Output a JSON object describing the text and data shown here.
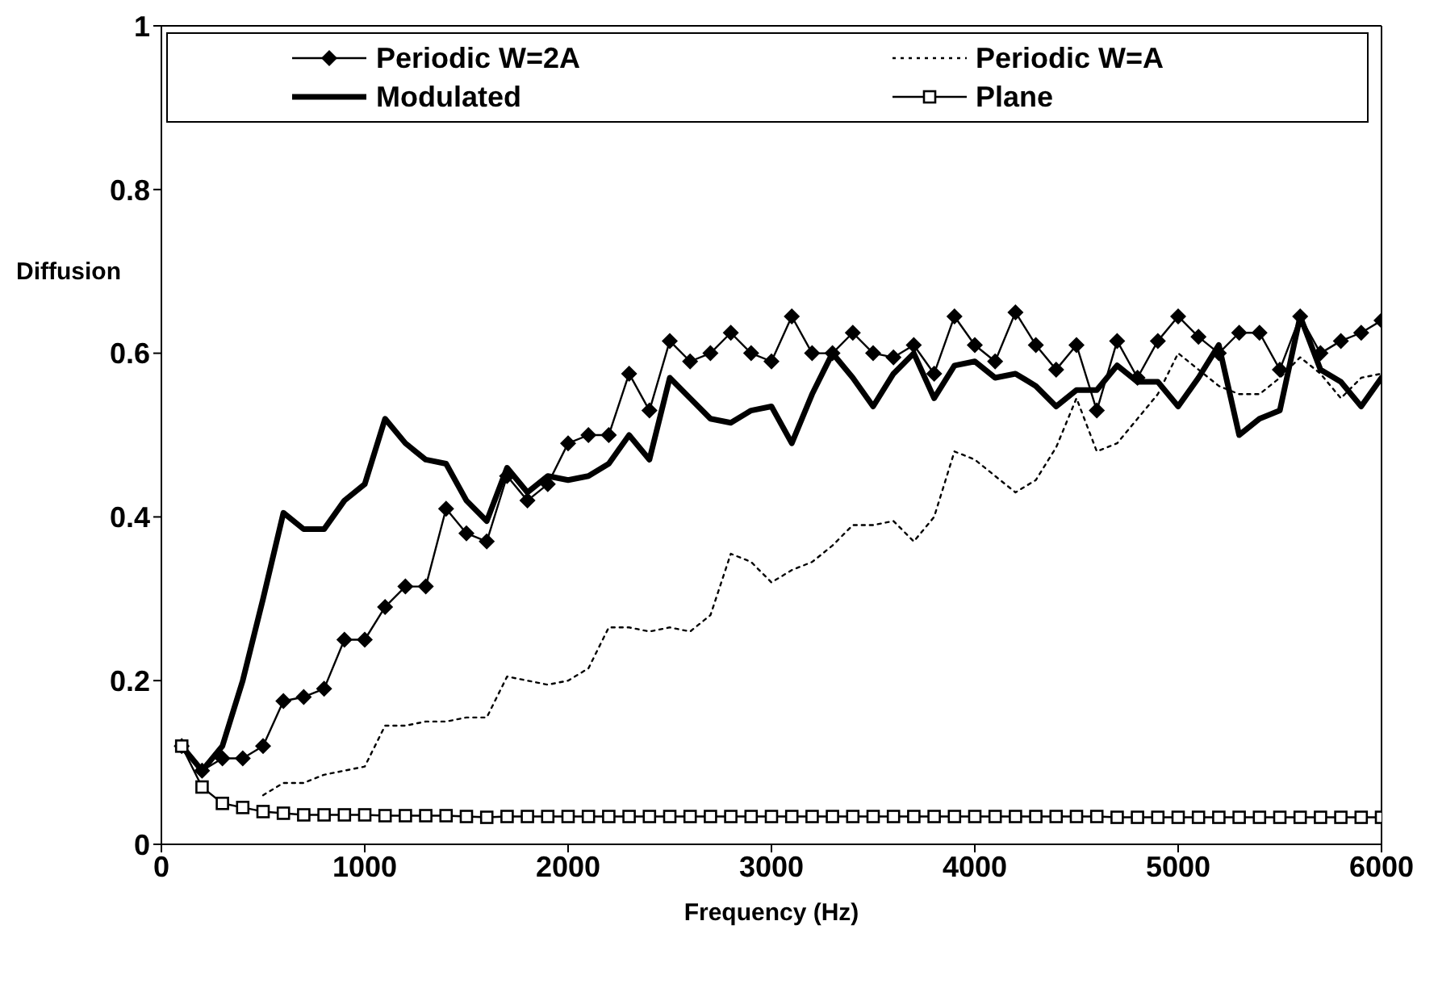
{
  "chart_data": {
    "type": "line",
    "xlabel": "Frequency (Hz)",
    "ylabel": "Diffusion",
    "x": [
      100,
      200,
      300,
      400,
      500,
      600,
      700,
      800,
      900,
      1000,
      1100,
      1200,
      1300,
      1400,
      1500,
      1600,
      1700,
      1800,
      1900,
      2000,
      2100,
      2200,
      2300,
      2400,
      2500,
      2600,
      2700,
      2800,
      2900,
      3000,
      3100,
      3200,
      3300,
      3400,
      3500,
      3600,
      3700,
      3800,
      3900,
      4000,
      4100,
      4200,
      4300,
      4400,
      4500,
      4600,
      4700,
      4800,
      4900,
      5000,
      5100,
      5200,
      5300,
      5400,
      5500,
      5600,
      5700,
      5800,
      5900,
      6000
    ],
    "series": [
      {
        "name": "Periodic W=2A",
        "color": "#000000",
        "marker": "diamond",
        "line_style": "solid",
        "values": [
          0.12,
          0.09,
          0.105,
          0.105,
          0.12,
          0.175,
          0.18,
          0.19,
          0.25,
          0.25,
          0.29,
          0.315,
          0.315,
          0.41,
          0.38,
          0.37,
          0.45,
          0.42,
          0.44,
          0.49,
          0.5,
          0.5,
          0.575,
          0.53,
          0.615,
          0.59,
          0.6,
          0.625,
          0.6,
          0.59,
          0.645,
          0.6,
          0.6,
          0.625,
          0.6,
          0.595,
          0.61,
          0.575,
          0.645,
          0.61,
          0.59,
          0.65,
          0.61,
          0.58,
          0.61,
          0.53,
          0.615,
          0.57,
          0.615,
          0.645,
          0.62,
          0.6,
          0.625,
          0.625,
          0.58,
          0.645,
          0.6,
          0.615,
          0.625,
          0.64
        ]
      },
      {
        "name": "Periodic W=A",
        "color": "#000000",
        "marker": "none",
        "line_style": "dotted",
        "values": [
          null,
          null,
          null,
          null,
          0.06,
          0.075,
          0.075,
          0.085,
          0.09,
          0.095,
          0.145,
          0.145,
          0.15,
          0.15,
          0.155,
          0.155,
          0.205,
          0.2,
          0.195,
          0.2,
          0.215,
          0.265,
          0.265,
          0.26,
          0.265,
          0.26,
          0.28,
          0.355,
          0.345,
          0.32,
          0.335,
          0.345,
          0.365,
          0.39,
          0.39,
          0.395,
          0.37,
          0.4,
          0.48,
          0.47,
          0.45,
          0.43,
          0.445,
          0.485,
          0.545,
          0.48,
          0.49,
          0.52,
          0.55,
          0.6,
          0.58,
          0.56,
          0.55,
          0.55,
          0.57,
          0.595,
          0.575,
          0.545,
          0.57,
          0.575
        ]
      },
      {
        "name": "Modulated",
        "color": "#000000",
        "marker": "none",
        "line_style": "solid",
        "values": [
          0.12,
          0.09,
          0.12,
          0.2,
          0.3,
          0.405,
          0.385,
          0.385,
          0.42,
          0.44,
          0.52,
          0.49,
          0.47,
          0.465,
          0.42,
          0.395,
          0.46,
          0.43,
          0.45,
          0.445,
          0.45,
          0.465,
          0.5,
          0.47,
          0.57,
          0.545,
          0.52,
          0.515,
          0.53,
          0.535,
          0.49,
          0.55,
          0.6,
          0.57,
          0.535,
          0.575,
          0.6,
          0.545,
          0.585,
          0.59,
          0.57,
          0.575,
          0.56,
          0.535,
          0.555,
          0.555,
          0.585,
          0.565,
          0.565,
          0.535,
          0.57,
          0.61,
          0.5,
          0.52,
          0.53,
          0.645,
          0.58,
          0.565,
          0.535,
          0.57
        ]
      },
      {
        "name": "Plane",
        "color": "#000000",
        "marker": "square",
        "line_style": "solid",
        "values": [
          0.12,
          0.07,
          0.05,
          0.045,
          0.04,
          0.038,
          0.036,
          0.036,
          0.036,
          0.036,
          0.035,
          0.035,
          0.035,
          0.035,
          0.034,
          0.033,
          0.034,
          0.034,
          0.034,
          0.034,
          0.034,
          0.034,
          0.034,
          0.034,
          0.034,
          0.034,
          0.034,
          0.034,
          0.034,
          0.034,
          0.034,
          0.034,
          0.034,
          0.034,
          0.034,
          0.034,
          0.034,
          0.034,
          0.034,
          0.034,
          0.034,
          0.034,
          0.034,
          0.034,
          0.034,
          0.034,
          0.033,
          0.033,
          0.033,
          0.033,
          0.033,
          0.033,
          0.033,
          0.033,
          0.033,
          0.033,
          0.033,
          0.033,
          0.033,
          0.033
        ]
      }
    ],
    "xlim": [
      0,
      6000
    ],
    "xticks": [
      0,
      1000,
      2000,
      3000,
      4000,
      5000,
      6000
    ],
    "ylim": [
      0,
      1
    ],
    "yticks": [
      0,
      0.2,
      0.4,
      0.6,
      0.8,
      1
    ],
    "grid": false,
    "legend": "top"
  }
}
